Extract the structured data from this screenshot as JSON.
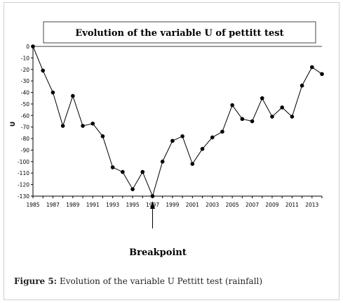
{
  "caption": {
    "label": "Figure 5:",
    "text": "Evolution of the variable U Pettitt test (rainfall)"
  },
  "chart_data": {
    "type": "line",
    "title": "Evolution of the variable U of pettitt test",
    "ylabel": "U",
    "xlabel": "",
    "annotation": "Breakpoint",
    "annotation_year": 1997,
    "xlim": [
      1985,
      2014
    ],
    "ylim": [
      -130,
      0
    ],
    "yticks": [
      0,
      -10,
      -20,
      -30,
      -40,
      -50,
      -60,
      -70,
      -80,
      -90,
      -100,
      -110,
      -120,
      -130
    ],
    "xticks": [
      1985,
      1987,
      1989,
      1991,
      1993,
      1995,
      1997,
      1999,
      2001,
      2003,
      2005,
      2007,
      2009,
      2011,
      2013
    ],
    "x": [
      1985,
      1986,
      1987,
      1988,
      1989,
      1990,
      1991,
      1992,
      1993,
      1994,
      1995,
      1996,
      1997,
      1998,
      1999,
      2000,
      2001,
      2002,
      2003,
      2004,
      2005,
      2006,
      2007,
      2008,
      2009,
      2010,
      2011,
      2012,
      2013,
      2014
    ],
    "series": [
      {
        "values": [
          0,
          -21,
          -40,
          -69,
          -43,
          -69,
          -67,
          -78,
          -105,
          -109,
          -124,
          -109,
          -130,
          -100,
          -82,
          -78,
          -102,
          -89,
          -79,
          -74,
          -51,
          -63,
          -65,
          -45,
          -61,
          -53,
          -61,
          -34,
          -18,
          -24
        ]
      }
    ],
    "grid": false,
    "line_color": "#000000"
  }
}
